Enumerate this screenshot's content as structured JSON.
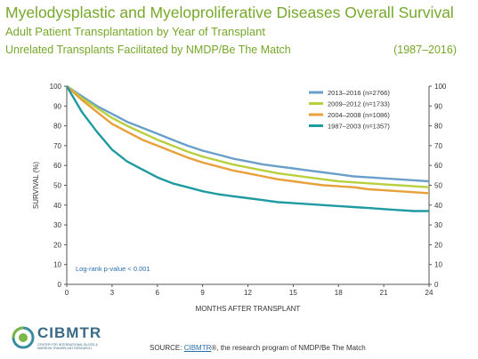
{
  "header": {
    "title": "Myelodysplastic and Myeloproliferative Diseases Overall Survival",
    "subtitle": "Adult Patient Transplantation by Year of Transplant",
    "subtitle2": "Unrelated Transplants Facilitated by NMDP/Be The Match",
    "period": "(1987–2016)"
  },
  "chart_data": {
    "type": "line",
    "title": "Myelodysplastic and Myeloproliferative Diseases Overall Survival",
    "xlabel": "MONTHS AFTER TRANSPLANT",
    "ylabel": "SURVIVAL (%)",
    "xlim": [
      0,
      24
    ],
    "ylim": [
      0,
      100
    ],
    "xticks": [
      0,
      3,
      6,
      9,
      12,
      15,
      18,
      21,
      24
    ],
    "yticks": [
      0,
      10,
      20,
      30,
      40,
      50,
      60,
      70,
      80,
      90,
      100
    ],
    "xtick_labels": [
      "0",
      "3",
      "6",
      "9",
      "12",
      "15",
      "18",
      "21",
      "24"
    ],
    "ytick_labels": [
      "0",
      "10",
      "20",
      "30",
      "40",
      "50",
      "60",
      "70",
      "80",
      "90",
      "100"
    ],
    "grid": false,
    "legend_position": "top-right",
    "annotation": "Log-rank p-value < 0.001",
    "series": [
      {
        "name": "2013–2016 (n=2766)",
        "color": "#6a9fca",
        "x": [
          0,
          1,
          2,
          3,
          4,
          5,
          6,
          7,
          8,
          9,
          10,
          11,
          12,
          13,
          14,
          15,
          16,
          17,
          18,
          19,
          20,
          21,
          22,
          23,
          24
        ],
        "y": [
          100,
          95,
          90,
          86,
          82,
          79,
          76,
          73,
          70,
          67.5,
          65.5,
          63.5,
          62,
          60.5,
          59.5,
          58.5,
          57.5,
          56.5,
          55.5,
          54.5,
          54,
          53.5,
          53,
          52.5,
          52
        ]
      },
      {
        "name": "2009–2012 (n=1733)",
        "color": "#b8cf3e",
        "x": [
          0,
          1,
          2,
          3,
          4,
          5,
          6,
          7,
          8,
          9,
          10,
          11,
          12,
          13,
          14,
          15,
          16,
          17,
          18,
          19,
          20,
          21,
          22,
          23,
          24
        ],
        "y": [
          100,
          94,
          89,
          84,
          80,
          76.5,
          73,
          70,
          67,
          64.5,
          62.5,
          60.5,
          59,
          57.5,
          56,
          55,
          54,
          53,
          52,
          51.5,
          51,
          50.5,
          50,
          49.5,
          49
        ]
      },
      {
        "name": "2004–2008 (n=1086)",
        "color": "#e8a03a",
        "x": [
          0,
          1,
          2,
          3,
          4,
          5,
          6,
          7,
          8,
          9,
          10,
          11,
          12,
          13,
          14,
          15,
          16,
          17,
          18,
          19,
          20,
          21,
          22,
          23,
          24
        ],
        "y": [
          100,
          93,
          87,
          81,
          77,
          73,
          70,
          67,
          64,
          61.5,
          59.5,
          57.5,
          56,
          54.5,
          53,
          52,
          51,
          50,
          49.5,
          49,
          48,
          47.5,
          47,
          46.5,
          46
        ]
      },
      {
        "name": "1987–2003 (n=1357)",
        "color": "#1e9ba0",
        "x": [
          0,
          1,
          2,
          3,
          4,
          5,
          6,
          7,
          8,
          9,
          10,
          11,
          12,
          13,
          14,
          15,
          16,
          17,
          18,
          19,
          20,
          21,
          22,
          23,
          24
        ],
        "y": [
          100,
          87,
          77,
          68,
          62,
          58,
          54,
          51,
          49,
          47,
          45.5,
          44.5,
          43.5,
          42.5,
          41.5,
          41,
          40.5,
          40,
          39.5,
          39,
          38.5,
          38,
          37.5,
          37,
          37
        ]
      }
    ]
  },
  "logo": {
    "name": "CIBMTR",
    "subtext": "CENTER FOR INTERNATIONAL BLOOD & MARROW TRANSPLANT RESEARCH"
  },
  "footer": {
    "source_label": "SOURCE:",
    "source_link": "CIBMTR",
    "source_rest": "®, the research program of NMDP/Be The Match"
  }
}
